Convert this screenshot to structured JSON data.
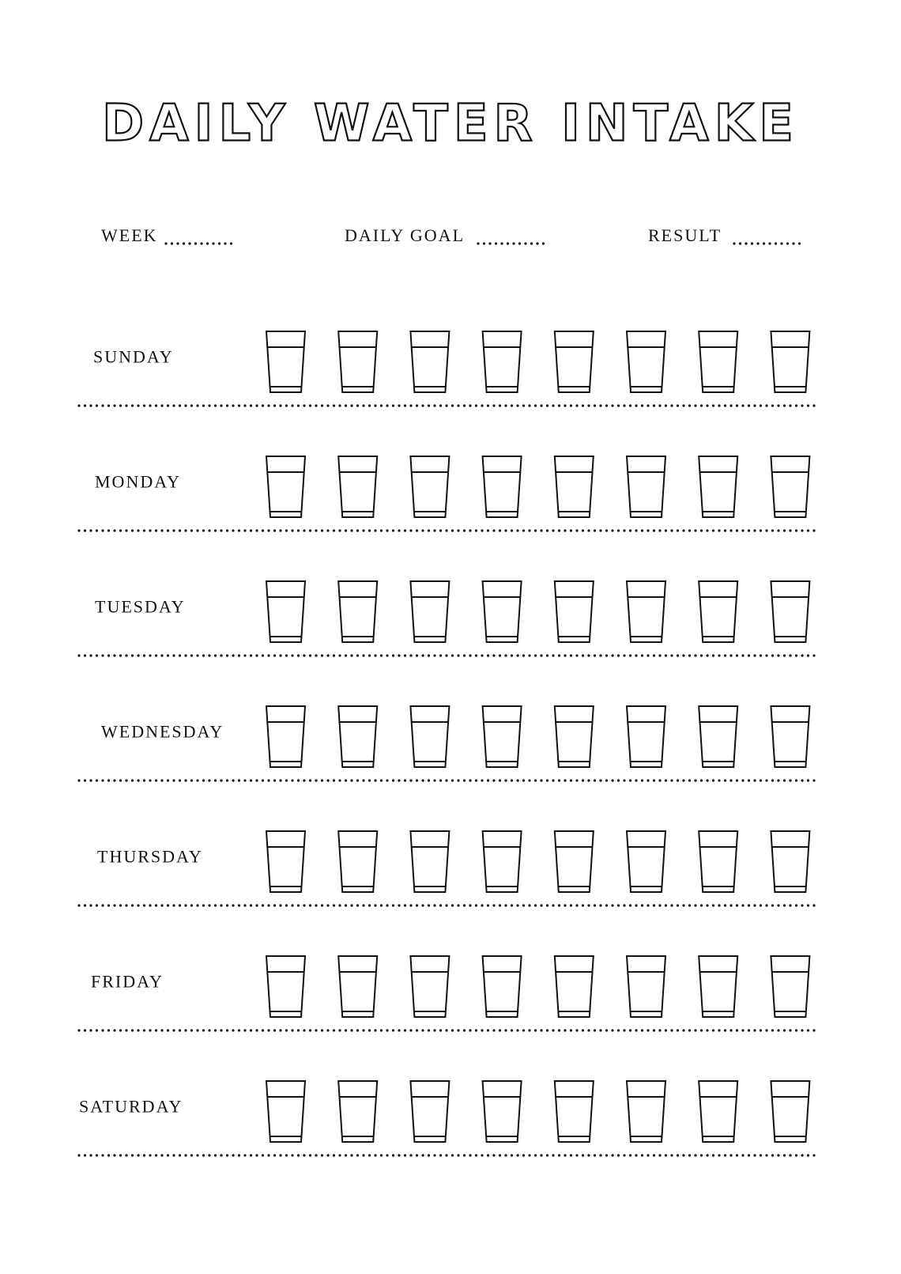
{
  "header": {
    "title": "DAILY WATER INTAKE"
  },
  "fields": [
    {
      "label": "WEEK"
    },
    {
      "label": "DAILY GOAL"
    },
    {
      "label": "RESULT"
    }
  ],
  "days": [
    "SUNDAY",
    "MONDAY",
    "TUESDAY",
    "WEDNESDAY",
    "THURSDAY",
    "FRIDAY",
    "SATURDAY"
  ]
}
